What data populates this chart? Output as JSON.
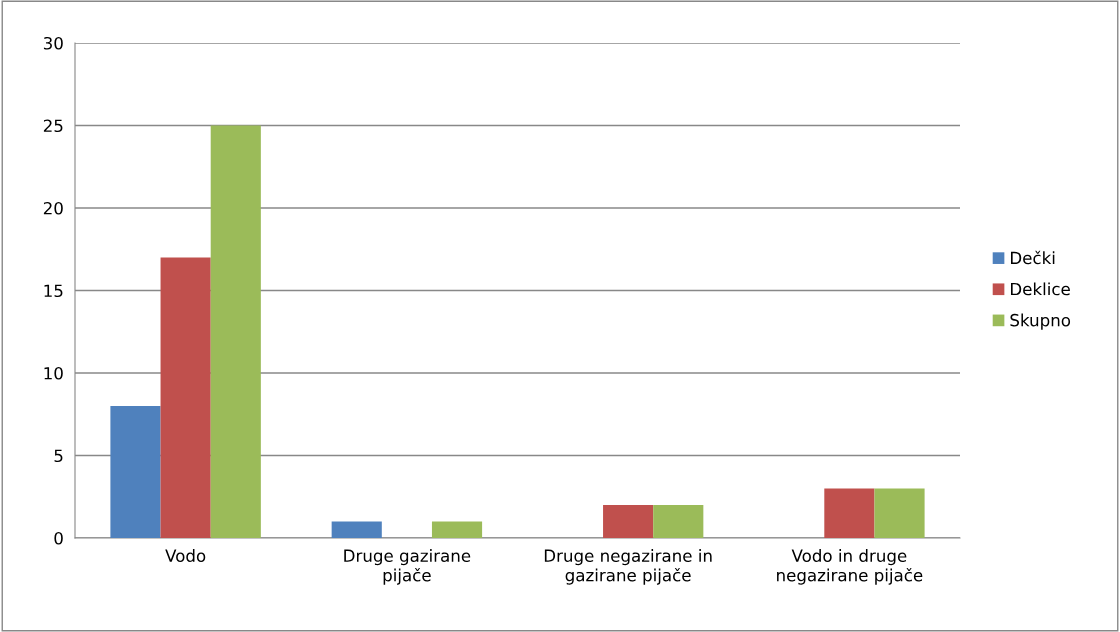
{
  "chart_data": {
    "type": "bar",
    "categories": [
      "Vodo",
      "Druge gazirane\npijače",
      "Druge negazirane in\ngazirane pijače",
      "Vodo in druge\nnegazirane pijače"
    ],
    "series": [
      {
        "name": "Dečki",
        "color": "#4f81bd",
        "values": [
          8,
          1,
          0,
          0
        ]
      },
      {
        "name": "Deklice",
        "color": "#c0504d",
        "values": [
          17,
          0,
          2,
          3
        ]
      },
      {
        "name": "Skupno",
        "color": "#9bbb59",
        "values": [
          25,
          1,
          2,
          3
        ]
      }
    ],
    "ylim": [
      0,
      30
    ],
    "yticks": [
      0,
      5,
      10,
      15,
      20,
      25,
      30
    ],
    "grid": "y",
    "legend": "right"
  }
}
